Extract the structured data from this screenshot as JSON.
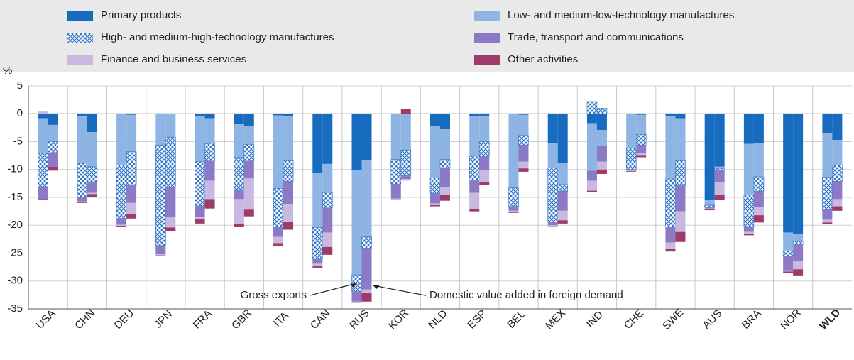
{
  "chart_data": {
    "type": "stacked_bar",
    "y_label": "%",
    "categories": [
      "USA",
      "CHN",
      "DEU",
      "JPN",
      "FRA",
      "GBR",
      "ITA",
      "CAN",
      "RUS",
      "KOR",
      "NLD",
      "ESP",
      "BEL",
      "MEX",
      "IND",
      "CHE",
      "SWE",
      "AUS",
      "BRA",
      "NOR",
      "WLD"
    ],
    "series": [
      {
        "name": "Primary products",
        "color": "#176cc0",
        "values": [
          [
            -0.8,
            -2
          ],
          [
            -0.5,
            -3.3
          ],
          [
            -0.1,
            -0.2
          ],
          [
            -0.1,
            -0.1
          ],
          [
            -0.4,
            -0.8
          ],
          [
            -1.8,
            -2.2
          ],
          [
            -0.3,
            -0.5
          ],
          [
            -10.6,
            -9
          ],
          [
            -10.1,
            -8.3
          ],
          [
            -0.1,
            -0.1
          ],
          [
            -2.2,
            -2.8
          ],
          [
            -0.4,
            -0.5
          ],
          [
            -0.1,
            -0.2
          ],
          [
            -5.3,
            -8.9
          ],
          [
            -1.7,
            -2.9
          ],
          [
            -0.1,
            -0.2
          ],
          [
            -0.5,
            -0.8
          ],
          [
            -15.4,
            -9.5
          ],
          [
            -5.4,
            -5.3
          ],
          [
            -21.3,
            -21.5
          ],
          [
            -3.5,
            -4.7
          ]
        ]
      },
      {
        "name": "Low- and medium-low-technology manufactures",
        "color": "#8db4e2",
        "values": [
          [
            -6.3,
            -3
          ],
          [
            -8.4,
            -6.2
          ],
          [
            -9.1,
            -6.6
          ],
          [
            -5.5,
            -4.1
          ],
          [
            -8.2,
            -4.5
          ],
          [
            -6,
            -3.3
          ],
          [
            -13.1,
            -7.9
          ],
          [
            -9.8,
            -5.1
          ],
          [
            -18.8,
            -13.8
          ],
          [
            -8.1,
            -6.4
          ],
          [
            -9.3,
            -5.4
          ],
          [
            -7.2,
            -4.5
          ],
          [
            -13.2,
            -3.7
          ],
          [
            -4.4,
            -3.8
          ],
          [
            -8.5,
            -2.9
          ],
          [
            -6.1,
            -3.5
          ],
          [
            -11.2,
            -7.6
          ],
          [
            -1,
            -0.3
          ],
          [
            -9.2,
            -6
          ],
          [
            -3.3,
            -1.3
          ],
          [
            -7.9,
            -4.5
          ]
        ]
      },
      {
        "name": "High- and medium-high-technology manufactures",
        "color": "#2f74c4",
        "hatch": true,
        "values": [
          [
            -6,
            -2
          ],
          [
            -6,
            -2.7
          ],
          [
            -9.6,
            -6
          ],
          [
            -18,
            -9
          ],
          [
            -7.9,
            -3.2
          ],
          [
            -5.8,
            -3
          ],
          [
            -7,
            -3.7
          ],
          [
            -5.7,
            -2.8
          ],
          [
            -3,
            -2
          ],
          [
            -4.4,
            -4.6
          ],
          [
            -2.8,
            -1.5
          ],
          [
            -4.3,
            -2.7
          ],
          [
            -3.3,
            -1.7
          ],
          [
            -9.7,
            -1.2
          ],
          [
            2.2,
            1
          ],
          [
            -3.8,
            -1.9
          ],
          [
            -8.6,
            -4.5
          ],
          [
            -0.3,
            -0.3
          ],
          [
            -5.6,
            -2.6
          ],
          [
            -0.9,
            -0.6
          ],
          [
            -5.8,
            -2.9
          ]
        ]
      },
      {
        "name": "Trade, transport and communications",
        "color": "#8c7ac6",
        "values": [
          [
            -2.2,
            -2.5
          ],
          [
            -0.8,
            -2
          ],
          [
            -1.1,
            -3.2
          ],
          [
            -1.6,
            -5.4
          ],
          [
            -2.1,
            -3.5
          ],
          [
            -1.7,
            -3.1
          ],
          [
            -1.7,
            -4.1
          ],
          [
            -0.8,
            -4.4
          ],
          [
            -1.8,
            -7.4
          ],
          [
            -2.6,
            -0.6
          ],
          [
            -1.8,
            -3.4
          ],
          [
            -2.3,
            -2.4
          ],
          [
            -0.8,
            -3
          ],
          [
            -0.6,
            -3.5
          ],
          [
            -1.8,
            -2.8
          ],
          [
            -0.2,
            -1.4
          ],
          [
            -2.8,
            -4.6
          ],
          [
            -0.3,
            -2.2
          ],
          [
            -1,
            -2.9
          ],
          [
            -2.6,
            -3.1
          ],
          [
            -1.8,
            -3.2
          ]
        ]
      },
      {
        "name": "Finance and business services",
        "color": "#c9b8e0",
        "values": [
          [
            0.4,
            0
          ],
          [
            -0.1,
            -0.2
          ],
          [
            -0.2,
            -2
          ],
          [
            -0.2,
            -1.8
          ],
          [
            -0.3,
            -3.3
          ],
          [
            -4.4,
            -5.6
          ],
          [
            -1.1,
            -3.2
          ],
          [
            -0.4,
            -2.6
          ],
          [
            -0.1,
            -0.6
          ],
          [
            -0.2,
            -0.3
          ],
          [
            -0.3,
            -1.4
          ],
          [
            -2.9,
            -2.1
          ],
          [
            -0.3,
            -1.2
          ],
          [
            -0.2,
            -1.7
          ],
          [
            -1.8,
            -1.4
          ],
          [
            -0.1,
            -0.4
          ],
          [
            -1.2,
            -3.7
          ],
          [
            -0.1,
            -2.3
          ],
          [
            -0.3,
            -1.4
          ],
          [
            -0.2,
            -1.4
          ],
          [
            -0.5,
            -1.3
          ]
        ]
      },
      {
        "name": "Other activities",
        "color": "#9e3b6b",
        "values": [
          [
            -0.2,
            -0.7
          ],
          [
            -0.2,
            -0.6
          ],
          [
            -0.2,
            -0.8
          ],
          [
            -0.1,
            -0.7
          ],
          [
            -0.8,
            -1.7
          ],
          [
            -0.6,
            -1.2
          ],
          [
            -0.5,
            -1.4
          ],
          [
            -0.3,
            -1.4
          ],
          [
            -0.1,
            -1.6
          ],
          [
            -0.1,
            0.9
          ],
          [
            -0.2,
            -1.1
          ],
          [
            -0.4,
            -0.6
          ],
          [
            -0.1,
            -0.6
          ],
          [
            -0.1,
            -0.6
          ],
          [
            -0.3,
            -0.8
          ],
          [
            -0.1,
            -0.4
          ],
          [
            -0.4,
            -1.8
          ],
          [
            -0.2,
            -0.9
          ],
          [
            -0.3,
            -1.3
          ],
          [
            -0.3,
            -1.1
          ],
          [
            -0.3,
            -0.8
          ]
        ]
      }
    ],
    "annotations": [
      "Gross exports",
      "Domestic value added in foreign demand"
    ],
    "ylim": [
      -35,
      5
    ],
    "yticks": [
      5,
      0,
      -5,
      -10,
      -15,
      -20,
      -25,
      -30,
      -35
    ],
    "grid": true
  }
}
